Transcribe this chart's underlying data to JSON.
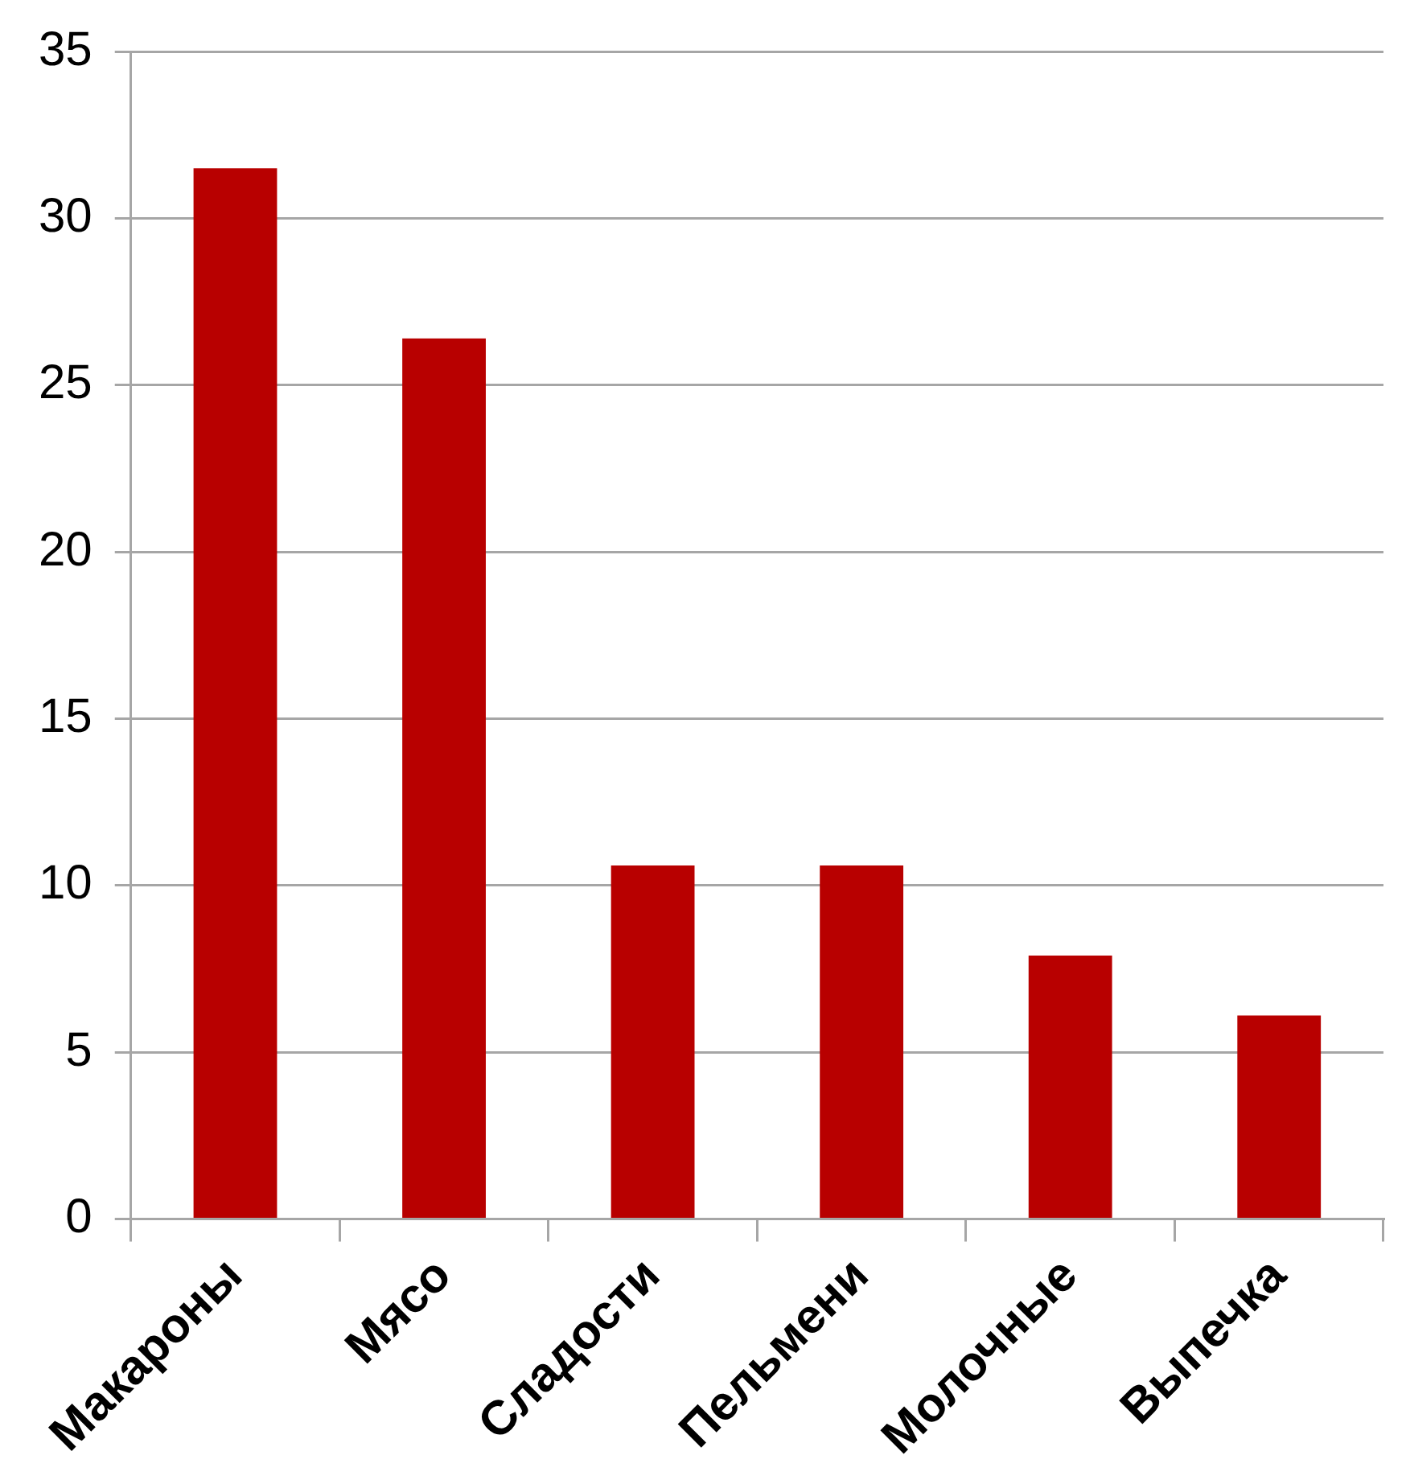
{
  "chart_data": {
    "type": "bar",
    "categories": [
      "Макароны",
      "Мясо",
      "Сладости",
      "Пельмени",
      "Молочные",
      "Выпечка"
    ],
    "values": [
      31.5,
      26.4,
      10.6,
      10.6,
      7.9,
      6.1
    ],
    "color": "#b80000",
    "ylim": [
      0,
      35
    ],
    "yticks": [
      0,
      5,
      10,
      15,
      20,
      25,
      30,
      35
    ],
    "grid": "y",
    "legend": false
  }
}
